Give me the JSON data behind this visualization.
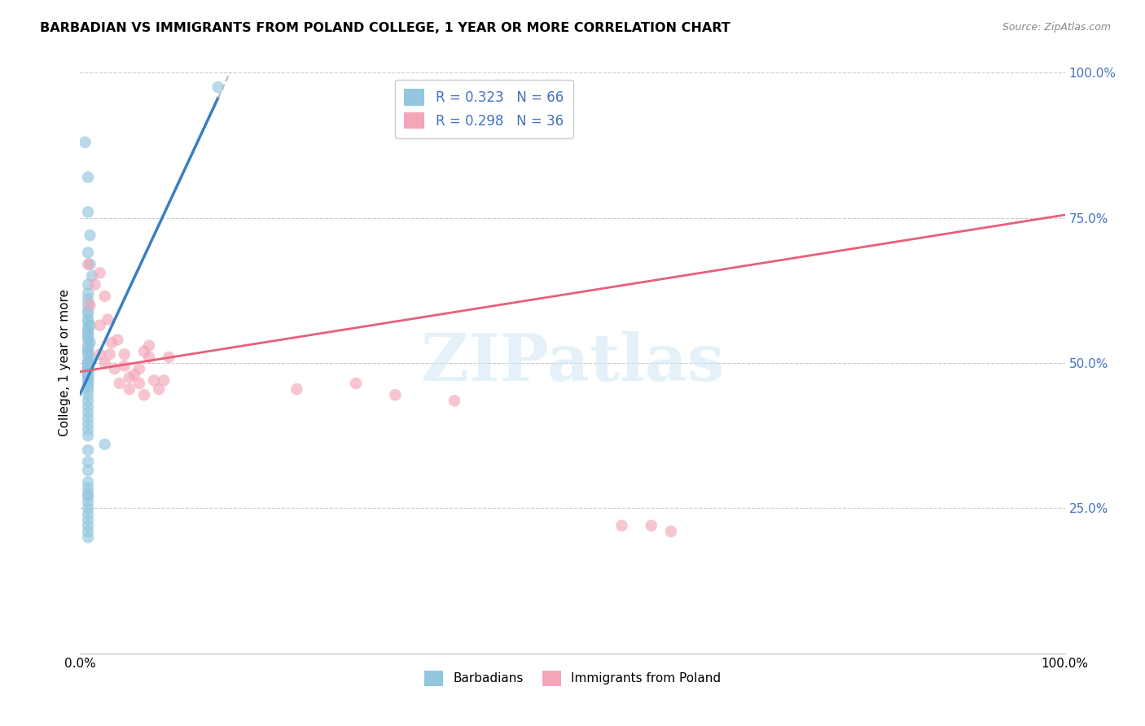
{
  "title": "BARBADIAN VS IMMIGRANTS FROM POLAND COLLEGE, 1 YEAR OR MORE CORRELATION CHART",
  "source": "Source: ZipAtlas.com",
  "ylabel": "College, 1 year or more",
  "color_blue": "#92c5de",
  "color_pink": "#f4a6b8",
  "line_blue": "#3a7fc1",
  "line_pink": "#e8607a",
  "line_dashed_color": "#bbbbbb",
  "legend_r1": "R = 0.323",
  "legend_n1": "N = 66",
  "legend_r2": "R = 0.298",
  "legend_n2": "N = 36",
  "watermark_text": "ZIPatlas",
  "blue_x": [
    0.005,
    0.008,
    0.008,
    0.01,
    0.008,
    0.01,
    0.012,
    0.008,
    0.008,
    0.008,
    0.008,
    0.008,
    0.008,
    0.008,
    0.008,
    0.01,
    0.008,
    0.008,
    0.008,
    0.008,
    0.008,
    0.01,
    0.008,
    0.008,
    0.008,
    0.008,
    0.01,
    0.008,
    0.008,
    0.008,
    0.008,
    0.008,
    0.008,
    0.008,
    0.008,
    0.008,
    0.008,
    0.008,
    0.008,
    0.008,
    0.008,
    0.008,
    0.008,
    0.008,
    0.008,
    0.008,
    0.008,
    0.008,
    0.008,
    0.008,
    0.025,
    0.008,
    0.008,
    0.008,
    0.008,
    0.008,
    0.008,
    0.008,
    0.008,
    0.008,
    0.008,
    0.008,
    0.008,
    0.008,
    0.008,
    0.14
  ],
  "blue_y": [
    0.88,
    0.82,
    0.76,
    0.72,
    0.69,
    0.67,
    0.65,
    0.635,
    0.62,
    0.61,
    0.6,
    0.59,
    0.585,
    0.575,
    0.57,
    0.565,
    0.56,
    0.555,
    0.55,
    0.545,
    0.54,
    0.535,
    0.53,
    0.525,
    0.52,
    0.515,
    0.51,
    0.505,
    0.5,
    0.498,
    0.495,
    0.492,
    0.49,
    0.487,
    0.485,
    0.48,
    0.478,
    0.475,
    0.47,
    0.465,
    0.46,
    0.455,
    0.445,
    0.435,
    0.425,
    0.415,
    0.405,
    0.395,
    0.385,
    0.375,
    0.36,
    0.35,
    0.33,
    0.315,
    0.295,
    0.285,
    0.275,
    0.27,
    0.26,
    0.25,
    0.24,
    0.23,
    0.22,
    0.21,
    0.2,
    0.975
  ],
  "pink_x": [
    0.008,
    0.015,
    0.02,
    0.01,
    0.025,
    0.02,
    0.028,
    0.032,
    0.02,
    0.038,
    0.025,
    0.03,
    0.035,
    0.04,
    0.045,
    0.05,
    0.045,
    0.05,
    0.055,
    0.06,
    0.065,
    0.07,
    0.06,
    0.075,
    0.065,
    0.08,
    0.07,
    0.085,
    0.09,
    0.22,
    0.28,
    0.32,
    0.38,
    0.55,
    0.58,
    0.6
  ],
  "pink_y": [
    0.67,
    0.635,
    0.655,
    0.6,
    0.615,
    0.565,
    0.575,
    0.535,
    0.515,
    0.54,
    0.5,
    0.515,
    0.49,
    0.465,
    0.495,
    0.475,
    0.515,
    0.455,
    0.48,
    0.465,
    0.445,
    0.51,
    0.49,
    0.47,
    0.52,
    0.455,
    0.53,
    0.47,
    0.51,
    0.455,
    0.465,
    0.445,
    0.435,
    0.22,
    0.22,
    0.21
  ],
  "blue_line_x_end": 0.14,
  "blue_line_x_dash_end": 0.28,
  "ytick_values": [
    0.0,
    0.25,
    0.5,
    0.75,
    1.0
  ],
  "ytick_labels": [
    "",
    "25.0%",
    "50.0%",
    "75.0%",
    "100.0%"
  ],
  "xtick_values": [
    0.0,
    0.1,
    0.2,
    0.3,
    0.4,
    0.5,
    0.6,
    0.7,
    0.8,
    0.9,
    1.0
  ],
  "xtick_labels": [
    "0.0%",
    "",
    "",
    "",
    "",
    "",
    "",
    "",
    "",
    "",
    "100.0%"
  ]
}
